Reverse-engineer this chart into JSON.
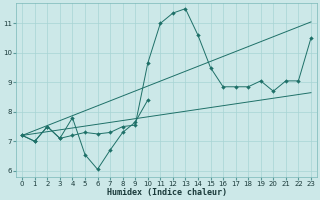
{
  "xlabel": "Humidex (Indice chaleur)",
  "bg_color": "#cce8e8",
  "line_color": "#1e7068",
  "grid_color": "#a8d4d4",
  "xlim": [
    -0.5,
    23.5
  ],
  "ylim": [
    5.8,
    11.7
  ],
  "xticks": [
    0,
    1,
    2,
    3,
    4,
    5,
    6,
    7,
    8,
    9,
    10,
    11,
    12,
    13,
    14,
    15,
    16,
    17,
    18,
    19,
    20,
    21,
    22,
    23
  ],
  "yticks": [
    6,
    7,
    8,
    9,
    10,
    11
  ],
  "curve_main": {
    "x": [
      0,
      1,
      2,
      3,
      4,
      5,
      6,
      7,
      8,
      9,
      10,
      11,
      12,
      13,
      14,
      15,
      16,
      17,
      18,
      19,
      20,
      21,
      22,
      23
    ],
    "y": [
      7.2,
      7.0,
      7.5,
      7.1,
      7.2,
      7.3,
      7.25,
      7.3,
      7.5,
      7.55,
      9.65,
      11.0,
      11.35,
      11.5,
      10.6,
      9.5,
      8.85,
      8.85,
      8.85,
      9.05,
      8.7,
      9.05,
      9.05,
      10.5
    ]
  },
  "curve_dip": {
    "x": [
      0,
      1,
      2,
      3,
      4,
      5,
      6,
      7,
      8,
      9,
      10
    ],
    "y": [
      7.2,
      7.0,
      7.5,
      7.1,
      7.8,
      6.55,
      6.05,
      6.7,
      7.3,
      7.65,
      8.4
    ]
  },
  "line_low": {
    "x": [
      0,
      23
    ],
    "y": [
      7.2,
      8.65
    ]
  },
  "line_high": {
    "x": [
      0,
      23
    ],
    "y": [
      7.2,
      11.05
    ]
  }
}
